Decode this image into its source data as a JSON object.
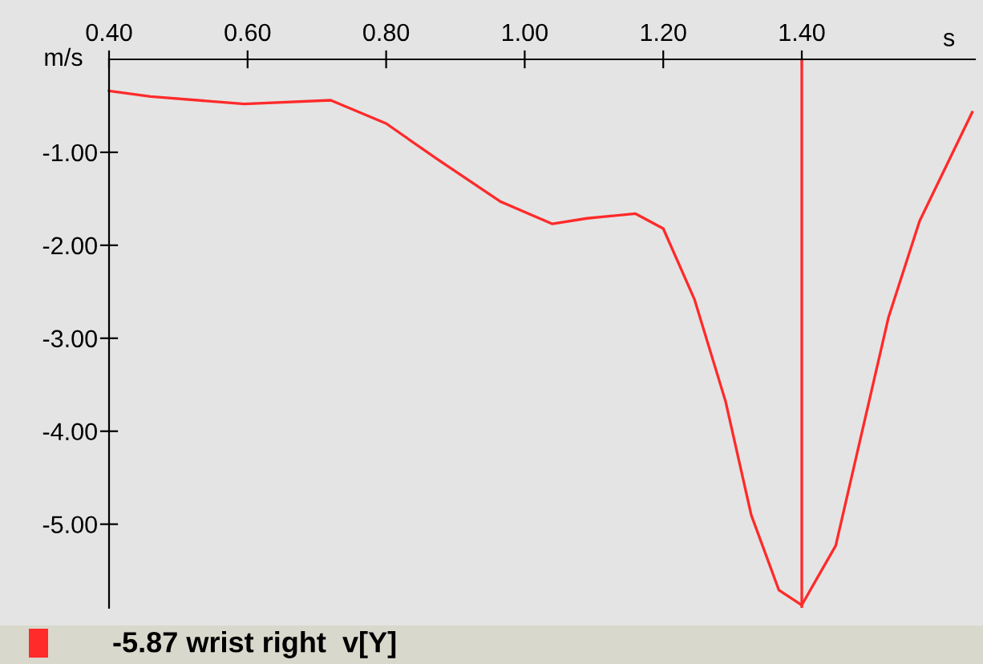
{
  "chart_data": {
    "type": "line",
    "xlabel": "s",
    "ylabel": "m/s",
    "x": [
      0.4,
      0.46,
      0.595,
      0.72,
      0.8,
      0.875,
      0.965,
      1.04,
      1.09,
      1.16,
      1.2,
      1.245,
      1.29,
      1.327,
      1.367,
      1.4,
      1.449,
      1.525,
      1.57,
      1.646
    ],
    "series": [
      {
        "name": "-5.87 wrist right  v[Y]",
        "color": "#ff2a2a",
        "values": [
          -0.34,
          -0.4,
          -0.48,
          -0.44,
          -0.69,
          -1.08,
          -1.53,
          -1.77,
          -1.71,
          -1.66,
          -1.82,
          -2.58,
          -3.68,
          -4.9,
          -5.71,
          -5.87,
          -5.23,
          -2.78,
          -1.74,
          -0.57
        ]
      }
    ],
    "xlim": [
      0.4,
      1.65
    ],
    "ylim": [
      -5.9,
      0
    ],
    "xticks": [
      {
        "value": 0.4,
        "label": "0.40"
      },
      {
        "value": 0.6,
        "label": "0.60"
      },
      {
        "value": 0.8,
        "label": "0.80"
      },
      {
        "value": 1.0,
        "label": "1.00"
      },
      {
        "value": 1.2,
        "label": "1.20"
      },
      {
        "value": 1.4,
        "label": "1.40"
      }
    ],
    "yticks": [
      {
        "value": -1,
        "label": "-1.00"
      },
      {
        "value": -2,
        "label": "-2.00"
      },
      {
        "value": -3,
        "label": "-3.00"
      },
      {
        "value": -4,
        "label": "-4.00"
      },
      {
        "value": -5,
        "label": "-5.00"
      }
    ],
    "ref_lines": [
      {
        "axis": "x",
        "value": 1.4,
        "color": "#ff2a2a"
      }
    ],
    "grid": false,
    "legend": "bottom",
    "marker": "none",
    "line_style": "solid"
  }
}
